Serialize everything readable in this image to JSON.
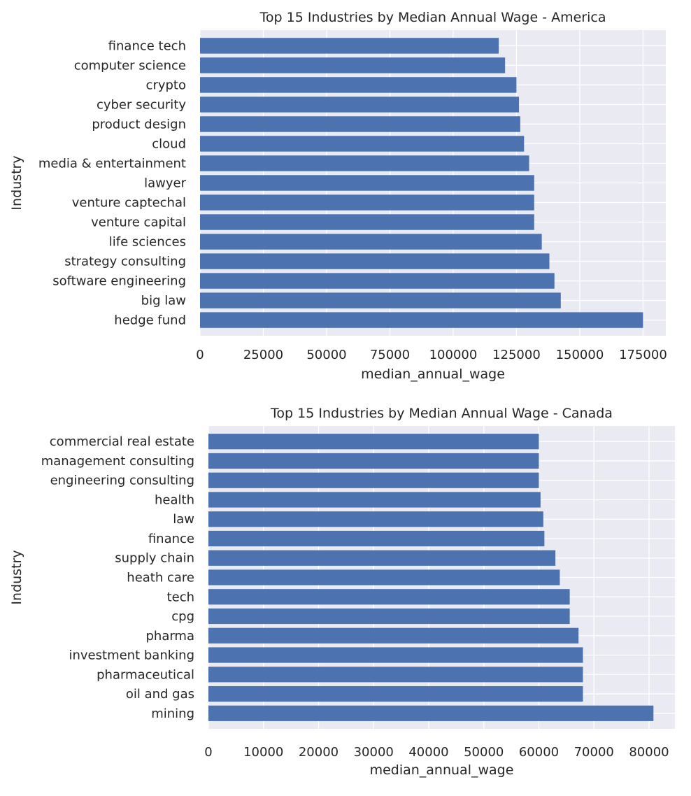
{
  "chart_data": [
    {
      "type": "bar",
      "orientation": "horizontal",
      "title": "Top 15 Industries by Median Annual Wage - America",
      "xlabel": "median_annual_wage",
      "ylabel": "Industry",
      "xlim": [
        0,
        184000
      ],
      "xticks": [
        0,
        25000,
        50000,
        75000,
        100000,
        125000,
        150000,
        175000
      ],
      "grid": true,
      "bar_color": "#4c72b0",
      "background_color": "#eaeaf2",
      "categories": [
        "finance tech",
        "computer science",
        "crypto",
        "cyber security",
        "product design",
        "cloud",
        "media & entertainment",
        "lawyer",
        "venture captechal",
        "venture capital",
        "life sciences",
        "strategy consulting",
        "software engineering",
        "big law",
        "hedge fund"
      ],
      "values": [
        118000,
        120500,
        125000,
        126000,
        126500,
        128000,
        130000,
        132000,
        132000,
        132000,
        135000,
        138000,
        140000,
        142500,
        175000
      ]
    },
    {
      "type": "bar",
      "orientation": "horizontal",
      "title": "Top 15 Industries by Median Annual Wage - Canada",
      "xlabel": "median_annual_wage",
      "ylabel": "Industry",
      "xlim": [
        0,
        84700
      ],
      "xticks": [
        0,
        10000,
        20000,
        30000,
        40000,
        50000,
        60000,
        70000,
        80000
      ],
      "grid": true,
      "bar_color": "#4c72b0",
      "background_color": "#eaeaf2",
      "categories": [
        "commercial real estate",
        "management consulting",
        "engineering consulting",
        "health",
        "law",
        "finance",
        "supply chain",
        "heath care",
        "tech",
        "cpg",
        "pharma",
        "investment banking",
        "pharmaceutical",
        "oil and gas",
        "mining"
      ],
      "values": [
        60000,
        60000,
        60000,
        60300,
        60800,
        61000,
        63000,
        63800,
        65600,
        65600,
        67200,
        68000,
        68000,
        68000,
        80800
      ]
    }
  ]
}
